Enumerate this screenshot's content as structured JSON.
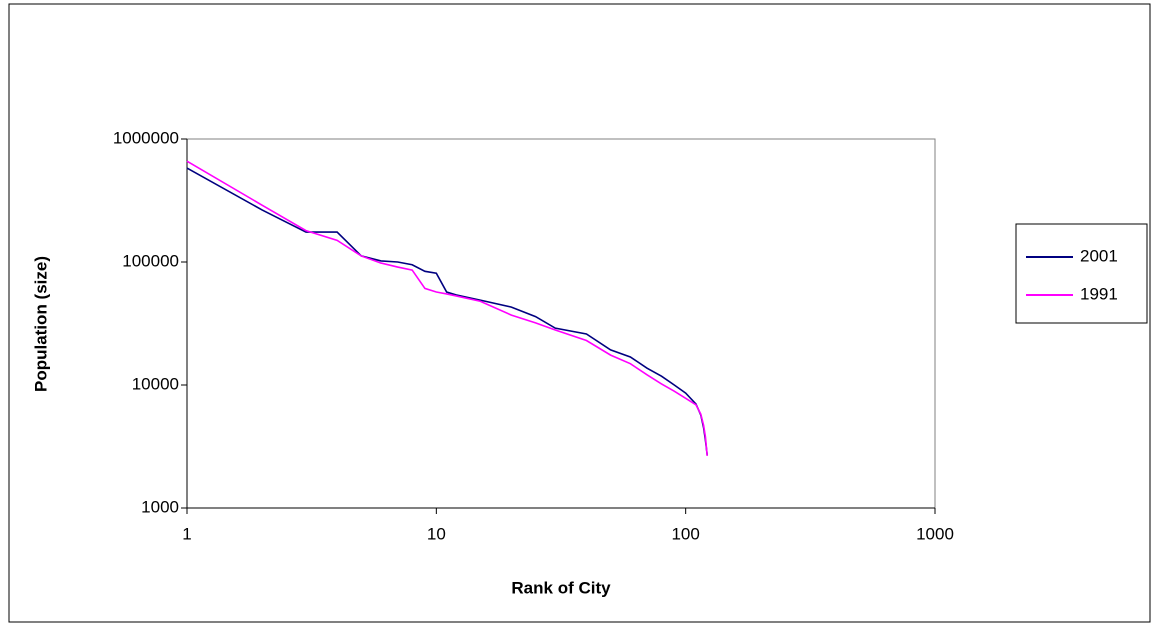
{
  "chart_data": {
    "type": "line",
    "x_label": "Rank of City",
    "y_label": "Population (size)",
    "x": [
      1,
      2,
      3,
      4,
      5,
      6,
      7,
      8,
      9,
      10,
      11,
      12,
      15,
      20,
      25,
      30,
      40,
      50,
      60,
      70,
      80,
      90,
      100,
      110,
      115,
      118,
      120,
      122
    ],
    "series": [
      {
        "name": "2001",
        "color": "#000080",
        "values": [
          580000,
          265000,
          175000,
          175000,
          112000,
          102000,
          100000,
          95000,
          84000,
          81000,
          57000,
          54000,
          49000,
          43000,
          36000,
          29000,
          26000,
          19300,
          16900,
          13700,
          11800,
          10000,
          8600,
          7000,
          5700,
          4500,
          3570,
          2700
        ]
      },
      {
        "name": "1991",
        "color": "#ff00ff",
        "values": [
          660000,
          290000,
          180000,
          150000,
          112000,
          98000,
          91000,
          86000,
          61000,
          57000,
          55000,
          53000,
          48000,
          37000,
          32000,
          28000,
          23000,
          17500,
          14900,
          12100,
          10200,
          8900,
          7800,
          6900,
          5800,
          4700,
          3800,
          2650
        ]
      }
    ],
    "xscale": "log",
    "yscale": "log",
    "xlim": [
      1,
      1000
    ],
    "xticks": [
      1,
      10,
      100,
      1000
    ],
    "ylim": [
      1000,
      1000000
    ],
    "yticks": [
      1000,
      10000,
      100000,
      1000000
    ],
    "legend": "right"
  }
}
